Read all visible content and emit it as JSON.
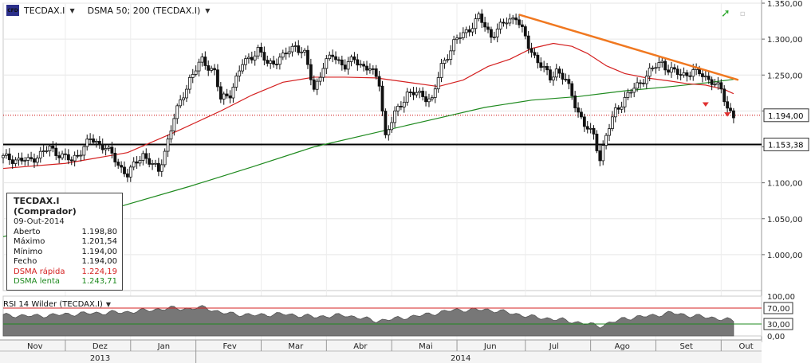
{
  "header": {
    "symbol": "TECDAX.I",
    "indicator": "DSMA 50; 200 (TECDAX.I)"
  },
  "info_box": {
    "title": "TECDAX.I (Comprador)",
    "date": "09-Out-2014",
    "rows": [
      {
        "label": "Aberto",
        "value": "1.198,80",
        "color": "#111111"
      },
      {
        "label": "Máximo",
        "value": "1.201,54",
        "color": "#111111"
      },
      {
        "label": "Mínimo",
        "value": "1.194,00",
        "color": "#111111"
      },
      {
        "label": "Fecho",
        "value": "1.194,00",
        "color": "#111111"
      },
      {
        "label": "DSMA rápida",
        "value": "1.224,19",
        "color": "#d42020"
      },
      {
        "label": "DSMA lenta",
        "value": "1.243,71",
        "color": "#1f8a1f"
      }
    ]
  },
  "rsi_panel": {
    "title": "RSI 14 Wilder (TECDAX.I)",
    "levels": [
      70,
      30
    ],
    "y_ticks": [
      "100,00",
      "70,00",
      "30,00",
      "0,00"
    ],
    "highlighted_ticks": [
      "70,00",
      "30,00"
    ]
  },
  "chart_data": {
    "type": "candlestick",
    "ylim": [
      950,
      1350
    ],
    "y_ticks": [
      {
        "value": 1350,
        "label": "1.350,00"
      },
      {
        "value": 1300,
        "label": "1.300,00"
      },
      {
        "value": 1250,
        "label": "1.250,00"
      },
      {
        "value": 1200,
        "label": "1.200,00"
      },
      {
        "value": 1150,
        "label": "1.150,00"
      },
      {
        "value": 1100,
        "label": "1.100,00"
      },
      {
        "value": 1050,
        "label": "1.050,00"
      },
      {
        "value": 1000,
        "label": "1.000,00"
      }
    ],
    "price_tags": [
      {
        "value": 1194,
        "label": "1.194,00",
        "style": "dotted-red"
      },
      {
        "value": 1153.38,
        "label": "1.153,38",
        "style": "solid-black"
      }
    ],
    "months": [
      "Nov",
      "Dez",
      "Jan",
      "Fev",
      "Mar",
      "Abr",
      "Mai",
      "Jun",
      "Jul",
      "Ago",
      "Set",
      "Out"
    ],
    "years": [
      "2013",
      "2014"
    ],
    "price_path": [
      [
        0,
        1135
      ],
      [
        8,
        1130
      ],
      [
        15,
        1148
      ],
      [
        22,
        1130
      ],
      [
        28,
        1160
      ],
      [
        33,
        1150
      ],
      [
        37,
        1125
      ],
      [
        40,
        1112
      ],
      [
        45,
        1140
      ],
      [
        50,
        1115
      ],
      [
        55,
        1190
      ],
      [
        60,
        1245
      ],
      [
        64,
        1270
      ],
      [
        68,
        1255
      ],
      [
        70,
        1215
      ],
      [
        73,
        1225
      ],
      [
        77,
        1265
      ],
      [
        82,
        1285
      ],
      [
        85,
        1265
      ],
      [
        90,
        1275
      ],
      [
        94,
        1292
      ],
      [
        97,
        1278
      ],
      [
        100,
        1230
      ],
      [
        103,
        1262
      ],
      [
        106,
        1278
      ],
      [
        110,
        1262
      ],
      [
        113,
        1272
      ],
      [
        116,
        1262
      ],
      [
        118,
        1258
      ],
      [
        121,
        1240
      ],
      [
        123,
        1165
      ],
      [
        126,
        1195
      ],
      [
        130,
        1225
      ],
      [
        135,
        1222
      ],
      [
        138,
        1215
      ],
      [
        141,
        1262
      ],
      [
        145,
        1295
      ],
      [
        150,
        1315
      ],
      [
        153,
        1330
      ],
      [
        157,
        1305
      ],
      [
        162,
        1325
      ],
      [
        165,
        1332
      ],
      [
        169,
        1290
      ],
      [
        172,
        1270
      ],
      [
        176,
        1245
      ],
      [
        178,
        1258
      ],
      [
        181,
        1242
      ],
      [
        184,
        1210
      ],
      [
        187,
        1180
      ],
      [
        190,
        1165
      ],
      [
        192,
        1135
      ],
      [
        194,
        1165
      ],
      [
        197,
        1200
      ],
      [
        200,
        1218
      ],
      [
        204,
        1235
      ],
      [
        208,
        1255
      ],
      [
        212,
        1268
      ],
      [
        214,
        1258
      ],
      [
        218,
        1250
      ],
      [
        222,
        1255
      ],
      [
        225,
        1250
      ],
      [
        228,
        1242
      ],
      [
        231,
        1228
      ],
      [
        233,
        1205
      ],
      [
        235,
        1194
      ]
    ],
    "dsma_fast": [
      [
        0,
        1120
      ],
      [
        20,
        1127
      ],
      [
        40,
        1142
      ],
      [
        55,
        1170
      ],
      [
        70,
        1200
      ],
      [
        80,
        1222
      ],
      [
        90,
        1240
      ],
      [
        100,
        1247
      ],
      [
        110,
        1247
      ],
      [
        120,
        1246
      ],
      [
        130,
        1240
      ],
      [
        140,
        1234
      ],
      [
        148,
        1243
      ],
      [
        156,
        1262
      ],
      [
        163,
        1272
      ],
      [
        170,
        1287
      ],
      [
        177,
        1294
      ],
      [
        183,
        1290
      ],
      [
        188,
        1280
      ],
      [
        194,
        1263
      ],
      [
        200,
        1252
      ],
      [
        207,
        1246
      ],
      [
        214,
        1242
      ],
      [
        220,
        1238
      ],
      [
        226,
        1236
      ],
      [
        232,
        1230
      ],
      [
        235,
        1224
      ]
    ],
    "dsma_slow": [
      [
        0,
        1025
      ],
      [
        20,
        1045
      ],
      [
        40,
        1070
      ],
      [
        60,
        1095
      ],
      [
        80,
        1122
      ],
      [
        100,
        1150
      ],
      [
        120,
        1170
      ],
      [
        140,
        1190
      ],
      [
        155,
        1205
      ],
      [
        170,
        1215
      ],
      [
        185,
        1220
      ],
      [
        200,
        1228
      ],
      [
        215,
        1234
      ],
      [
        228,
        1240
      ],
      [
        235,
        1244
      ]
    ],
    "trendline": [
      [
        166,
        1334
      ],
      [
        235,
        1242
      ]
    ],
    "support_level": 1153.38,
    "current_level": 1194,
    "rsi": [
      [
        0,
        52
      ],
      [
        10,
        50
      ],
      [
        25,
        56
      ],
      [
        40,
        60
      ],
      [
        50,
        67
      ],
      [
        55,
        70
      ],
      [
        60,
        68
      ],
      [
        65,
        72
      ],
      [
        70,
        58
      ],
      [
        80,
        52
      ],
      [
        90,
        55
      ],
      [
        100,
        48
      ],
      [
        110,
        52
      ],
      [
        120,
        38
      ],
      [
        125,
        42
      ],
      [
        135,
        52
      ],
      [
        145,
        65
      ],
      [
        155,
        66
      ],
      [
        160,
        62
      ],
      [
        170,
        48
      ],
      [
        180,
        40
      ],
      [
        188,
        30
      ],
      [
        192,
        25
      ],
      [
        200,
        44
      ],
      [
        210,
        52
      ],
      [
        215,
        58
      ],
      [
        220,
        52
      ],
      [
        228,
        46
      ],
      [
        235,
        38
      ]
    ]
  }
}
